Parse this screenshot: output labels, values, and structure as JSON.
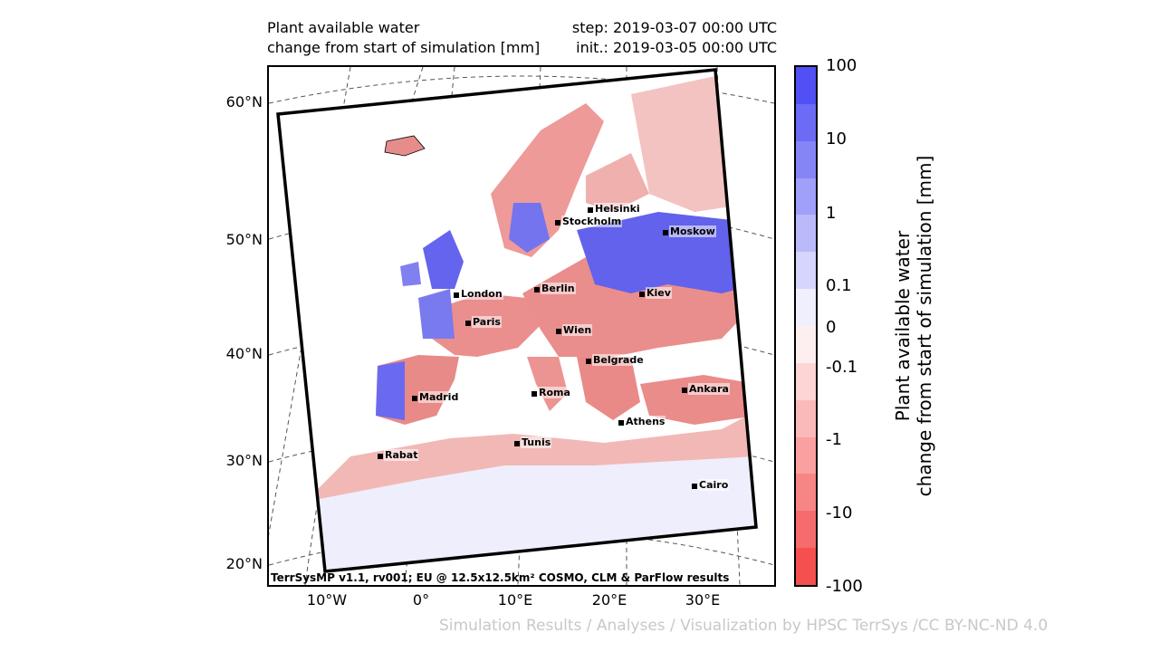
{
  "header": {
    "title_left": "Plant available water\nchange from start of simulation [mm]",
    "title_right": "step: 2019-03-07 00:00 UTC\ninit.: 2019-03-05 00:00 UTC"
  },
  "map": {
    "lat_labels": [
      "60°N",
      "50°N",
      "40°N",
      "30°N",
      "20°N"
    ],
    "lon_labels": [
      "10°W",
      "0°",
      "10°E",
      "20°E",
      "30°E"
    ],
    "credit": "TerrSysMP v1.1, rv001; EU @ 12.5x12.5km² COSMO, CLM & ParFlow results",
    "cities": [
      {
        "name": "Helsinki"
      },
      {
        "name": "Stockholm"
      },
      {
        "name": "Moskow"
      },
      {
        "name": "London"
      },
      {
        "name": "Berlin"
      },
      {
        "name": "Kiev"
      },
      {
        "name": "Paris"
      },
      {
        "name": "Wien"
      },
      {
        "name": "Belgrade"
      },
      {
        "name": "Madrid"
      },
      {
        "name": "Roma"
      },
      {
        "name": "Ankara"
      },
      {
        "name": "Athens"
      },
      {
        "name": "Tunis"
      },
      {
        "name": "Rabat"
      },
      {
        "name": "Cairo"
      }
    ]
  },
  "colorbar": {
    "title": "Plant available water\nchange from start of simulation [mm]",
    "tick_labels": [
      "100",
      "10",
      "1",
      "0.1",
      "0",
      "-0.1",
      "-1",
      "-10",
      "-100"
    ],
    "colors": [
      "#5050f5",
      "#6b6bf6",
      "#8585f8",
      "#a0a0fa",
      "#babafb",
      "#d5d5fd",
      "#efeffe",
      "#fdefef",
      "#fdd5d5",
      "#fbbaba",
      "#faa0a0",
      "#f88585",
      "#f66b6b",
      "#f55050"
    ]
  },
  "footer": "Simulation Results / Analyses / Visualization by HPSC TerrSys /CC BY-NC-ND 4.0"
}
